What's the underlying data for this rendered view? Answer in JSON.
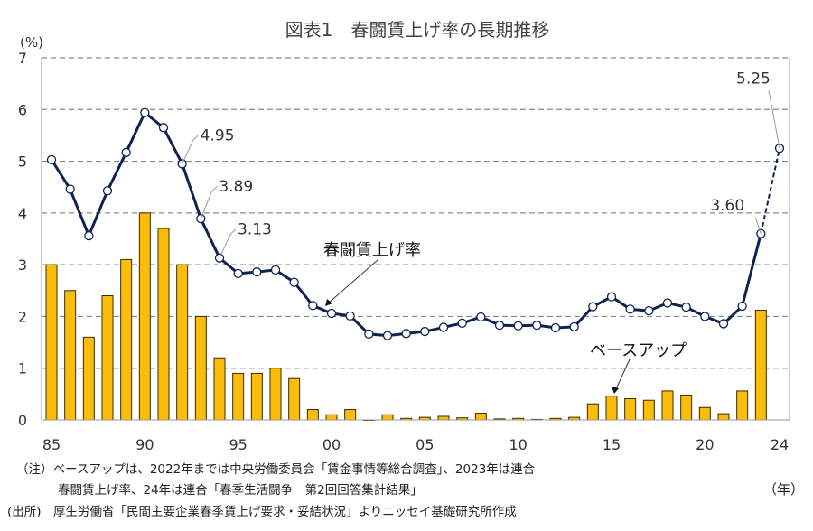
{
  "chart_data": {
    "type": "bar+line",
    "title": "図表1　春闘賃上げ率の長期推移",
    "ylabel": "(%)",
    "xlabel": "（年）",
    "ylim": [
      0,
      7
    ],
    "yticks": [
      "0",
      "1",
      "2",
      "3",
      "4",
      "5",
      "6",
      "7"
    ],
    "xtick_labels": [
      "85",
      "90",
      "95",
      "00",
      "05",
      "10",
      "15",
      "20",
      "24"
    ],
    "grid": true,
    "x": [
      1985,
      1986,
      1987,
      1988,
      1989,
      1990,
      1991,
      1992,
      1993,
      1994,
      1995,
      1996,
      1997,
      1998,
      1999,
      2000,
      2001,
      2002,
      2003,
      2004,
      2005,
      2006,
      2007,
      2008,
      2009,
      2010,
      2011,
      2012,
      2013,
      2014,
      2015,
      2016,
      2017,
      2018,
      2019,
      2020,
      2021,
      2022,
      2023,
      2024
    ],
    "series": [
      {
        "name": "春闘賃上げ率",
        "kind": "line",
        "color": "#0f2350",
        "values": [
          5.03,
          4.46,
          3.56,
          4.43,
          5.17,
          5.94,
          5.65,
          4.95,
          3.89,
          3.13,
          2.83,
          2.86,
          2.9,
          2.66,
          2.21,
          2.06,
          2.01,
          1.66,
          1.63,
          1.67,
          1.71,
          1.79,
          1.87,
          1.99,
          1.83,
          1.82,
          1.83,
          1.78,
          1.8,
          2.19,
          2.38,
          2.14,
          2.11,
          2.26,
          2.18,
          2.0,
          1.86,
          2.2,
          3.6,
          5.25
        ],
        "dashed_last_segment": true
      },
      {
        "name": "ベースアップ",
        "kind": "bar",
        "color": "#fbbd08",
        "values": [
          3.0,
          2.5,
          1.6,
          2.4,
          3.1,
          4.0,
          3.7,
          3.0,
          2.0,
          1.2,
          0.9,
          0.9,
          1.0,
          0.8,
          0.2,
          0.1,
          0.2,
          0,
          0.1,
          0.03,
          0.05,
          0.07,
          0.04,
          0.13,
          0.02,
          0.03,
          0.01,
          0.03,
          0.05,
          0.31,
          0.46,
          0.41,
          0.38,
          0.56,
          0.48,
          0.24,
          0.12,
          0.56,
          2.12,
          null
        ]
      }
    ],
    "annotations": [
      {
        "year": 1992,
        "text": "4.95"
      },
      {
        "year": 1993,
        "text": "3.89"
      },
      {
        "year": 1994,
        "text": "3.13"
      },
      {
        "year": 2023,
        "text": "3.60"
      },
      {
        "year": 2024,
        "text": "5.25"
      },
      {
        "text": "春闘賃上げ率",
        "points_to": "line"
      },
      {
        "text": "ベースアップ",
        "points_to": "bars"
      }
    ]
  },
  "notes": {
    "note1": "（注）ベースアップは、2022年までは中央労働委員会「賃金事情等総合調査」、2023年は連合",
    "note2": "春闘賃上げ率、24年は連合「春季生活闘争　第2回回答集計結果」",
    "source": "(出所)　厚生労働省「民間主要企業春季賃上げ要求・妥結状況」よりニッセイ基礎研究所作成"
  }
}
